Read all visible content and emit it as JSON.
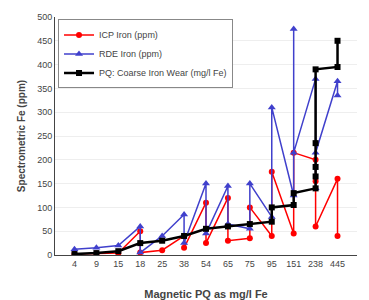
{
  "chart_data": {
    "type": "line",
    "xlabel": "Magnetic PQ as mg/l Fe",
    "ylabel": "Spectrometric Fe (ppm)",
    "categories": [
      "4",
      "9",
      "15",
      "18",
      "25",
      "38",
      "54",
      "65",
      "75",
      "95",
      "151",
      "238",
      "445"
    ],
    "series": [
      {
        "name": "ICP Iron (ppm)",
        "color": "#ff0000",
        "marker": "circle",
        "x": [
          "4",
          "9",
          "15",
          "18",
          "18",
          "25",
          "38",
          "38",
          "54",
          "54",
          "65",
          "65",
          "75",
          "75",
          "95",
          "95",
          "151",
          "151",
          "238",
          "238",
          "238",
          "445",
          "445"
        ],
        "values": [
          2,
          3,
          4,
          50,
          5,
          10,
          40,
          15,
          110,
          25,
          120,
          30,
          35,
          100,
          40,
          175,
          45,
          215,
          200,
          155,
          60,
          160,
          40
        ]
      },
      {
        "name": "RDE Iron (ppm)",
        "color": "#4040cc",
        "marker": "triangle-up",
        "x": [
          "4",
          "9",
          "15",
          "18",
          "18",
          "25",
          "38",
          "38",
          "54",
          "54",
          "65",
          "65",
          "75",
          "75",
          "95",
          "95",
          "151",
          "151",
          "151",
          "238",
          "238",
          "238",
          "445",
          "445"
        ],
        "values": [
          12,
          15,
          20,
          60,
          5,
          40,
          85,
          25,
          150,
          45,
          145,
          65,
          55,
          150,
          80,
          310,
          125,
          475,
          215,
          370,
          140,
          215,
          365,
          335
        ]
      },
      {
        "name": "PQ: Coarse Iron Wear (mg/l Fe)",
        "color": "#000000",
        "marker": "square",
        "x": [
          "4",
          "9",
          "15",
          "18",
          "25",
          "38",
          "54",
          "65",
          "75",
          "95",
          "95",
          "151",
          "151",
          "238",
          "238",
          "238",
          "238",
          "238",
          "445",
          "445"
        ],
        "values": [
          2,
          4,
          8,
          25,
          30,
          40,
          55,
          60,
          65,
          70,
          100,
          105,
          130,
          140,
          165,
          185,
          235,
          390,
          395,
          450
        ]
      }
    ],
    "ylim": [
      0,
      500
    ],
    "yticks": [
      0,
      50,
      100,
      150,
      200,
      250,
      300,
      350,
      400,
      450,
      500
    ],
    "grid": true,
    "legend": "upper left"
  }
}
